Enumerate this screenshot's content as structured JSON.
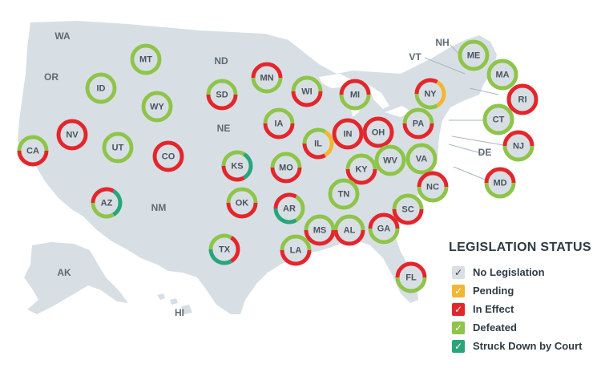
{
  "legend": {
    "title": "LEGISLATION STATUS",
    "items": [
      {
        "key": "none",
        "label": "No Legislation",
        "color": "#2f3b43",
        "check_color": "#ffffff",
        "swatch_bg": "#d9e0e5",
        "check": "✓"
      },
      {
        "key": "pending",
        "label": "Pending",
        "color": "#f2b632",
        "check": "✓"
      },
      {
        "key": "effect",
        "label": "In Effect",
        "color": "#e3262c",
        "check": "✓"
      },
      {
        "key": "defeated",
        "label": "Defeated",
        "color": "#8fc44a",
        "check": "✓"
      },
      {
        "key": "struck",
        "label": "Struck Down by Court",
        "color": "#2aa57b",
        "check": "✓"
      }
    ]
  },
  "colors": {
    "land": "#d7dfe5",
    "water": "#ffffff",
    "ring_inner": "#d7dfe5",
    "plain_label": "#5f6b73"
  },
  "plain_states": [
    "WA",
    "OR",
    "ND",
    "NE",
    "NM",
    "VT",
    "NH",
    "DE",
    "AK",
    "HI"
  ],
  "states": [
    {
      "abbr": "MT",
      "status": [
        "defeated"
      ]
    },
    {
      "abbr": "ID",
      "status": [
        "defeated"
      ]
    },
    {
      "abbr": "WY",
      "status": [
        "defeated"
      ]
    },
    {
      "abbr": "SD",
      "status": [
        "defeated",
        "effect"
      ]
    },
    {
      "abbr": "MN",
      "status": [
        "effect",
        "defeated"
      ]
    },
    {
      "abbr": "WI",
      "status": [
        "defeated",
        "effect"
      ]
    },
    {
      "abbr": "MI",
      "status": [
        "effect",
        "defeated"
      ]
    },
    {
      "abbr": "NY",
      "status": [
        "effect",
        "pending",
        "defeated"
      ]
    },
    {
      "abbr": "ME",
      "status": [
        "defeated"
      ]
    },
    {
      "abbr": "MA",
      "status": [
        "defeated"
      ]
    },
    {
      "abbr": "RI",
      "status": [
        "effect"
      ]
    },
    {
      "abbr": "CT",
      "status": [
        "defeated"
      ]
    },
    {
      "abbr": "NJ",
      "status": [
        "effect",
        "defeated"
      ]
    },
    {
      "abbr": "PA",
      "status": [
        "defeated",
        "effect"
      ]
    },
    {
      "abbr": "OH",
      "status": [
        "effect"
      ]
    },
    {
      "abbr": "IN",
      "status": [
        "effect"
      ]
    },
    {
      "abbr": "IL",
      "status": [
        "defeated",
        "pending",
        "effect"
      ]
    },
    {
      "abbr": "IA",
      "status": [
        "defeated",
        "effect"
      ]
    },
    {
      "abbr": "CA",
      "status": [
        "defeated",
        "effect"
      ]
    },
    {
      "abbr": "NV",
      "status": [
        "effect"
      ]
    },
    {
      "abbr": "UT",
      "status": [
        "defeated"
      ]
    },
    {
      "abbr": "CO",
      "status": [
        "effect"
      ]
    },
    {
      "abbr": "KS",
      "status": [
        "defeated",
        "struck",
        "effect"
      ]
    },
    {
      "abbr": "MO",
      "status": [
        "defeated",
        "effect"
      ]
    },
    {
      "abbr": "KY",
      "status": [
        "defeated",
        "effect"
      ]
    },
    {
      "abbr": "WV",
      "status": [
        "defeated"
      ]
    },
    {
      "abbr": "VA",
      "status": [
        "defeated"
      ]
    },
    {
      "abbr": "MD",
      "status": [
        "effect",
        "defeated"
      ]
    },
    {
      "abbr": "NC",
      "status": [
        "effect",
        "defeated"
      ]
    },
    {
      "abbr": "TN",
      "status": [
        "defeated"
      ]
    },
    {
      "abbr": "AZ",
      "status": [
        "effect",
        "struck",
        "defeated"
      ]
    },
    {
      "abbr": "OK",
      "status": [
        "defeated",
        "effect"
      ]
    },
    {
      "abbr": "AR",
      "status": [
        "effect",
        "defeated",
        "struck"
      ]
    },
    {
      "abbr": "SC",
      "status": [
        "defeated",
        "effect"
      ]
    },
    {
      "abbr": "MS",
      "status": [
        "defeated",
        "effect"
      ]
    },
    {
      "abbr": "AL",
      "status": [
        "defeated",
        "effect"
      ]
    },
    {
      "abbr": "GA",
      "status": [
        "effect",
        "defeated"
      ]
    },
    {
      "abbr": "TX",
      "status": [
        "defeated",
        "effect",
        "struck"
      ]
    },
    {
      "abbr": "LA",
      "status": [
        "defeated",
        "effect"
      ]
    },
    {
      "abbr": "FL",
      "status": [
        "effect",
        "defeated"
      ]
    }
  ]
}
